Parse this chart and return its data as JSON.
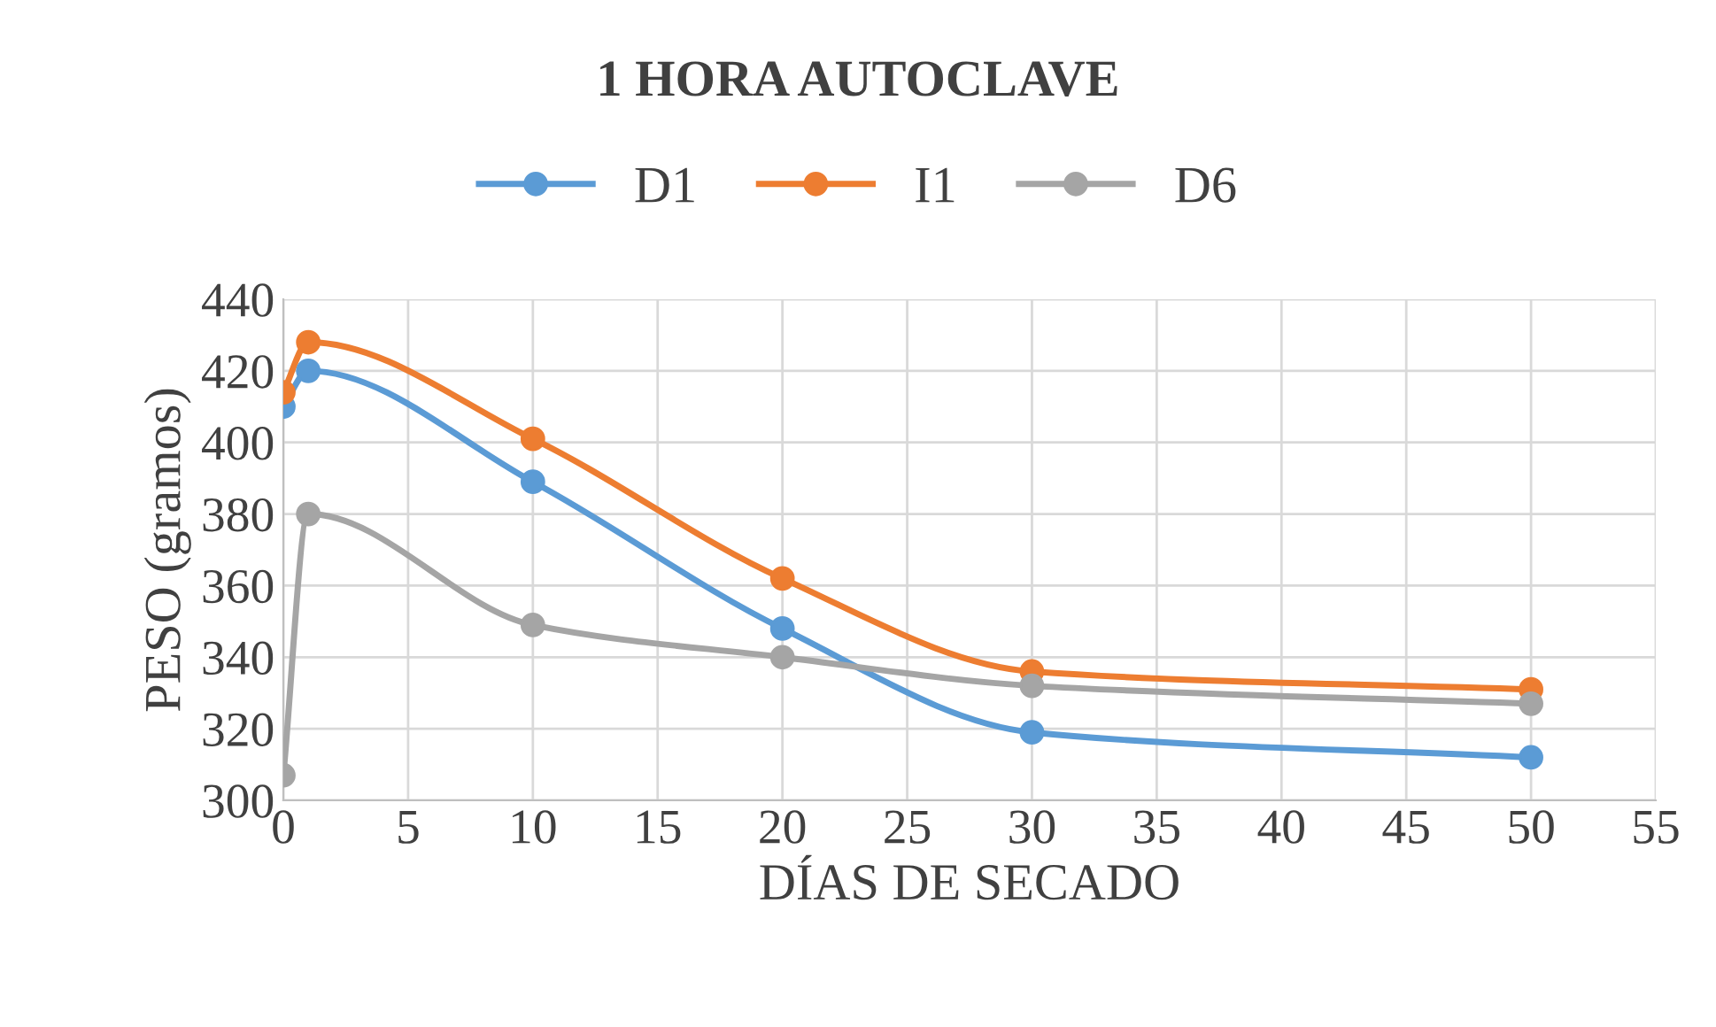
{
  "chart_data": {
    "type": "line",
    "title": "1 HORA AUTOCLAVE",
    "xlabel": "DÍAS DE SECADO",
    "ylabel": "PESO (gramos)",
    "x": [
      0,
      1,
      10,
      20,
      30,
      50
    ],
    "series": [
      {
        "name": "D1",
        "color": "#5b9bd5",
        "values": [
          410,
          420,
          389,
          348,
          319,
          312
        ]
      },
      {
        "name": "I1",
        "color": "#ed7d31",
        "values": [
          414,
          428,
          401,
          362,
          336,
          331
        ]
      },
      {
        "name": "D6",
        "color": "#a5a5a5",
        "values": [
          307,
          380,
          349,
          340,
          332,
          327
        ]
      }
    ],
    "xlim": [
      0,
      55
    ],
    "xticks": [
      0,
      5,
      10,
      15,
      20,
      25,
      30,
      35,
      40,
      45,
      50,
      55
    ],
    "ylim": [
      300,
      440
    ],
    "yticks": [
      300,
      320,
      340,
      360,
      380,
      400,
      420,
      440
    ],
    "grid": true,
    "legend": "top",
    "marker": "circle",
    "line_style": "solid"
  }
}
